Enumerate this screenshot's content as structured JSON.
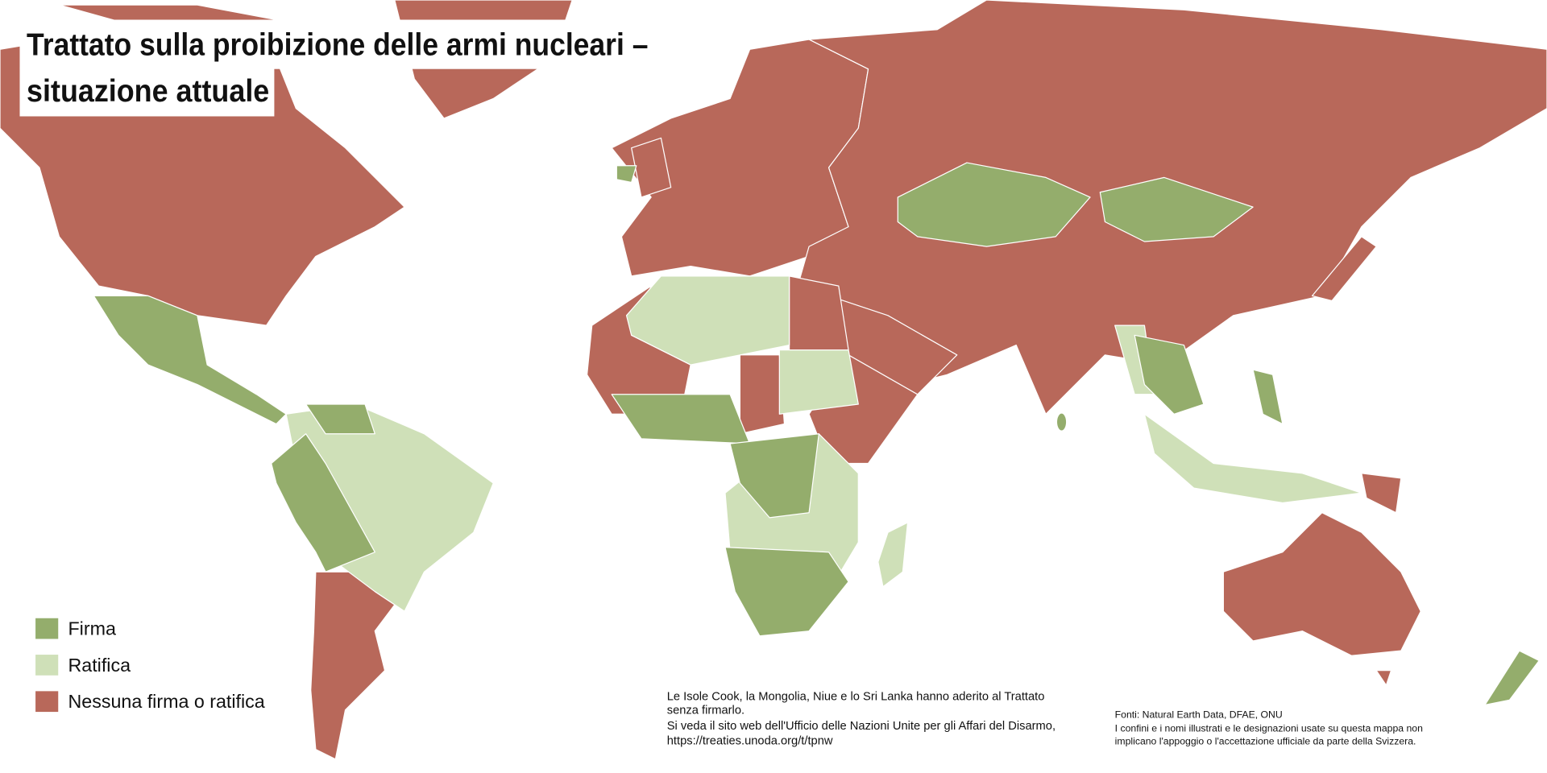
{
  "title": {
    "lines": [
      "Trattato sulla proibizione delle armi nucleari –",
      "situazione attuale"
    ]
  },
  "legend": [
    {
      "label": "Firma",
      "color": "#94ad6c"
    },
    {
      "label": "Ratifica",
      "color": "#cfe0b8"
    },
    {
      "label": "Nessuna firma o ratifica",
      "color": "#b8685a"
    }
  ],
  "note": {
    "lines": [
      "Le Isole Cook, la Mongolia, Niue e lo Sri Lanka hanno aderito al Trattato",
      "senza firmarlo.",
      "Si veda il sito web dell'Ufficio delle Nazioni Unite per gli Affari del Disarmo,",
      "https://treaties.unoda.org/t/tpnw"
    ]
  },
  "sources": {
    "lines": [
      "Fonti: Natural Earth Data, DFAE, ONU",
      "I confini e i nomi illustrati e le designazioni usate su questa mappa non",
      "implicano l'appoggio o l'accettazione ufficiale da parte della Svizzera."
    ]
  }
}
